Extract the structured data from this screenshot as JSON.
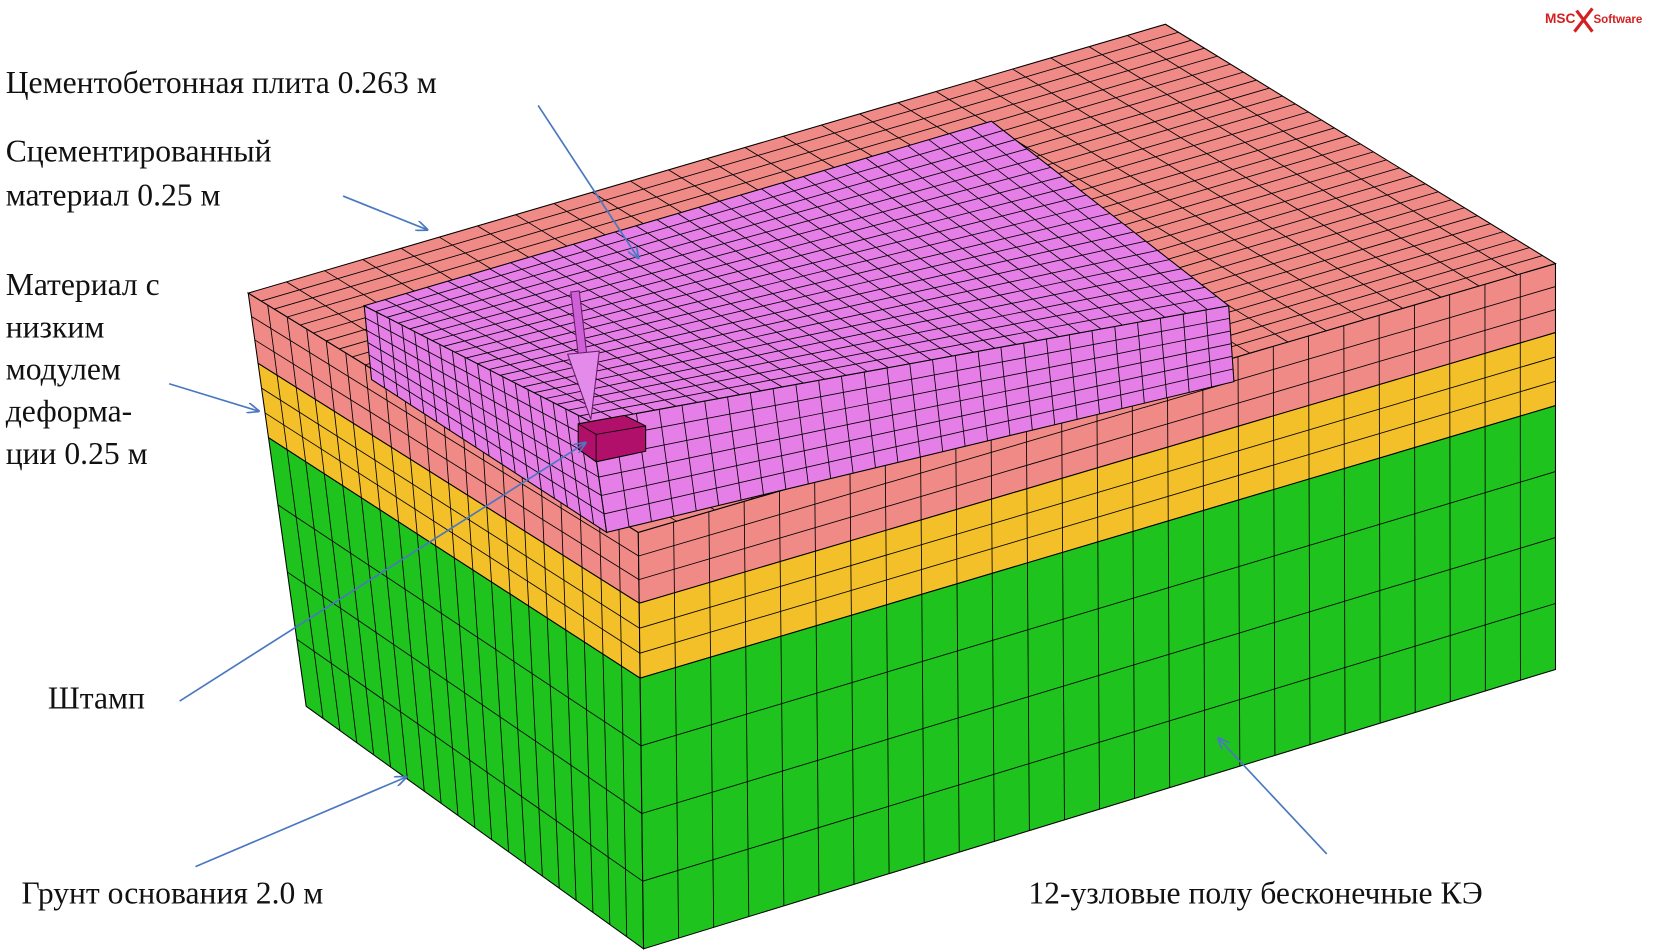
{
  "logo": {
    "left": "MSC",
    "right": "Software"
  },
  "labels": {
    "slab": "Цементобетонная плита 0.263 м",
    "cemented": [
      "Сцементированный",
      "материал 0.25 м"
    ],
    "low_modulus": [
      "Материал с",
      "низким",
      "модулем",
      "деформа-",
      "ции 0.25 м"
    ],
    "stamp": "Штамп",
    "subgrade": "Грунт основания 2.0 м",
    "infinite_elements": "12-узловые полу бесконечные КЭ"
  }
}
